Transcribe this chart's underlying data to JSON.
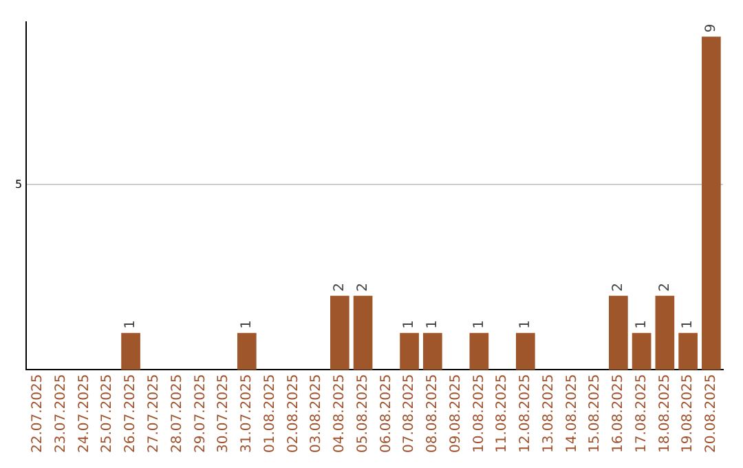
{
  "chart_data": {
    "type": "bar",
    "categories": [
      "22.07.2025",
      "23.07.2025",
      "24.07.2025",
      "25.07.2025",
      "26.07.2025",
      "27.07.2025",
      "28.07.2025",
      "29.07.2025",
      "30.07.2025",
      "31.07.2025",
      "01.08.2025",
      "02.08.2025",
      "03.08.2025",
      "04.08.2025",
      "05.08.2025",
      "06.08.2025",
      "07.08.2025",
      "08.08.2025",
      "09.08.2025",
      "10.08.2025",
      "11.08.2025",
      "12.08.2025",
      "13.08.2025",
      "14.08.2025",
      "15.08.2025",
      "16.08.2025",
      "17.08.2025",
      "18.08.2025",
      "19.08.2025",
      "20.08.2025"
    ],
    "values": [
      0,
      0,
      0,
      0,
      1,
      0,
      0,
      0,
      0,
      1,
      0,
      0,
      0,
      2,
      2,
      0,
      1,
      1,
      0,
      1,
      0,
      1,
      0,
      0,
      0,
      2,
      1,
      2,
      1,
      9
    ],
    "value_labels": [
      null,
      null,
      null,
      null,
      "1",
      null,
      null,
      null,
      null,
      "1",
      null,
      null,
      null,
      "2",
      "2",
      null,
      "1",
      "1",
      null,
      "1",
      null,
      "1",
      null,
      null,
      null,
      "2",
      "1",
      "2",
      "1",
      "9"
    ],
    "color": "#a0562b",
    "ylim": [
      0,
      9.4
    ],
    "yticks": [
      5
    ],
    "grid": "y"
  }
}
